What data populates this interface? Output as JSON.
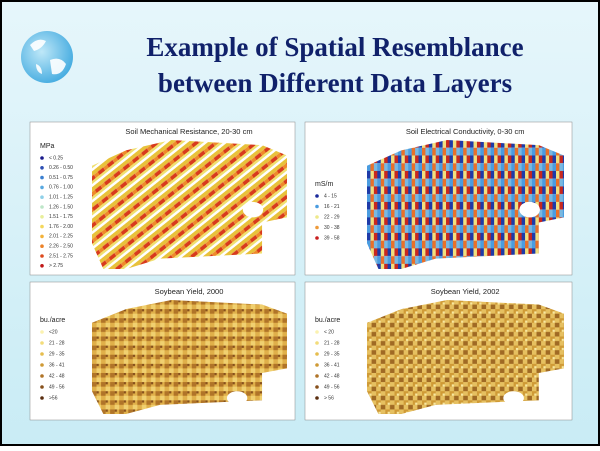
{
  "header": {
    "title_line1": "Example of Spatial Resemblance",
    "title_line2": "between Different Data Layers"
  },
  "panels": [
    {
      "title": "Soil Mechanical Resistance, 20-30 cm",
      "legend_title": "MPa",
      "legend": [
        {
          "label": "< 0.25",
          "color": "#1a1a8c"
        },
        {
          "label": "0.26 - 0.50",
          "color": "#2d4fb3"
        },
        {
          "label": "0.51 - 0.75",
          "color": "#3a7fd0"
        },
        {
          "label": "0.76 - 1.00",
          "color": "#58a8e0"
        },
        {
          "label": "1.01 - 1.25",
          "color": "#8fd0e8"
        },
        {
          "label": "1.26 - 1.50",
          "color": "#bde6c8"
        },
        {
          "label": "1.51 - 1.75",
          "color": "#e8ee9a"
        },
        {
          "label": "1.76 - 2.00",
          "color": "#f4d75c"
        },
        {
          "label": "2.01 - 2.25",
          "color": "#f3b23a"
        },
        {
          "label": "2.26 - 2.50",
          "color": "#ec8228"
        },
        {
          "label": "2.51 - 2.75",
          "color": "#dd4a1f"
        },
        {
          "label": "> 2.75",
          "color": "#c01818"
        }
      ]
    },
    {
      "title": "Soil Electrical Conductivity, 0-30 cm",
      "legend_title": "mS/m",
      "legend": [
        {
          "label": "4 - 15",
          "color": "#1a2a9c"
        },
        {
          "label": "16 - 21",
          "color": "#4a9ce0"
        },
        {
          "label": "22 - 29",
          "color": "#eee88a"
        },
        {
          "label": "30 - 38",
          "color": "#ee9a3a"
        },
        {
          "label": "39 - 58",
          "color": "#c81e1e"
        }
      ]
    },
    {
      "title": "Soybean Yield, 2000",
      "legend_title": "bu./acre",
      "legend": [
        {
          "label": "<20",
          "color": "#fbf2b0"
        },
        {
          "label": "21 - 28",
          "color": "#f3dc7a"
        },
        {
          "label": "29 - 35",
          "color": "#e6bd4e"
        },
        {
          "label": "36 - 41",
          "color": "#cf9a36"
        },
        {
          "label": "42 - 48",
          "color": "#b07428"
        },
        {
          "label": "49 - 56",
          "color": "#87501c"
        },
        {
          "label": ">56",
          "color": "#5a2e10"
        }
      ]
    },
    {
      "title": "Soybean Yield, 2002",
      "legend_title": "bu./acre",
      "legend": [
        {
          "label": "< 20",
          "color": "#fbf2b0"
        },
        {
          "label": "21 - 28",
          "color": "#f3dc7a"
        },
        {
          "label": "29 - 35",
          "color": "#e6bd4e"
        },
        {
          "label": "36 - 41",
          "color": "#cf9a36"
        },
        {
          "label": "42 - 48",
          "color": "#b07428"
        },
        {
          "label": "49 - 56",
          "color": "#87501c"
        },
        {
          "label": "> 56",
          "color": "#5a2e10"
        }
      ]
    }
  ]
}
